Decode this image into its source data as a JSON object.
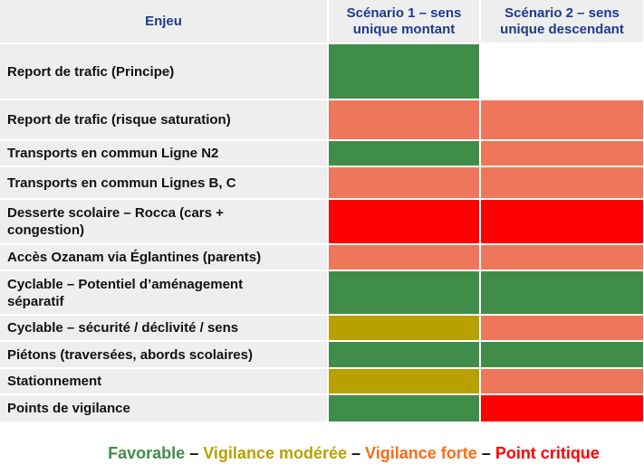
{
  "header": {
    "col_enjeu": "Enjeu",
    "col_s1": "Scénario 1 – sens unique montant",
    "col_s2": "Scénario 2 – sens unique descendant"
  },
  "colors": {
    "favorable": "#408d4a",
    "vigilance_moderee": "#b7a100",
    "vigilance_forte": "#ee765b",
    "point_critique": "#ff0000"
  },
  "rows": [
    {
      "label": "Report de trafic (Principe)",
      "s1": "favorable",
      "s2_top": "vigilance_forte",
      "s2_bottom": "point_critique"
    },
    {
      "label": "Report de trafic (risque saturation)",
      "s1": "vigilance_forte",
      "s2": "vigilance_forte"
    },
    {
      "label": "Transports en commun Ligne N2",
      "s1": "favorable",
      "s2": "vigilance_forte"
    },
    {
      "label": "Transports en commun Lignes B, C",
      "s1": "vigilance_forte",
      "s2": "vigilance_forte"
    },
    {
      "label": "Desserte scolaire – Rocca (cars + congestion)",
      "s1": "point_critique",
      "s2": "point_critique"
    },
    {
      "label": "Accès Ozanam via Églantines (parents)",
      "s1": "vigilance_forte",
      "s2": "vigilance_forte"
    },
    {
      "label": "Cyclable – Potentiel d’aménagement séparatif",
      "s1": "favorable",
      "s2": "favorable"
    },
    {
      "label": "Cyclable – sécurité / déclivité / sens",
      "s1": "vigilance_moderee",
      "s2": "vigilance_forte"
    },
    {
      "label": "Piétons (traversées, abords scolaires)",
      "s1": "favorable",
      "s2": "favorable"
    },
    {
      "label": "Stationnement",
      "s1": "vigilance_moderee",
      "s2": "vigilance_forte"
    },
    {
      "label": "Points de vigilance",
      "s1": "favorable",
      "s2": "point_critique"
    }
  ],
  "legend": {
    "favorable": "Favorable",
    "vigilance_moderee": "Vigilance modérée",
    "vigilance_forte": "Vigilance forte",
    "point_critique": "Point critique",
    "separator": "–"
  }
}
